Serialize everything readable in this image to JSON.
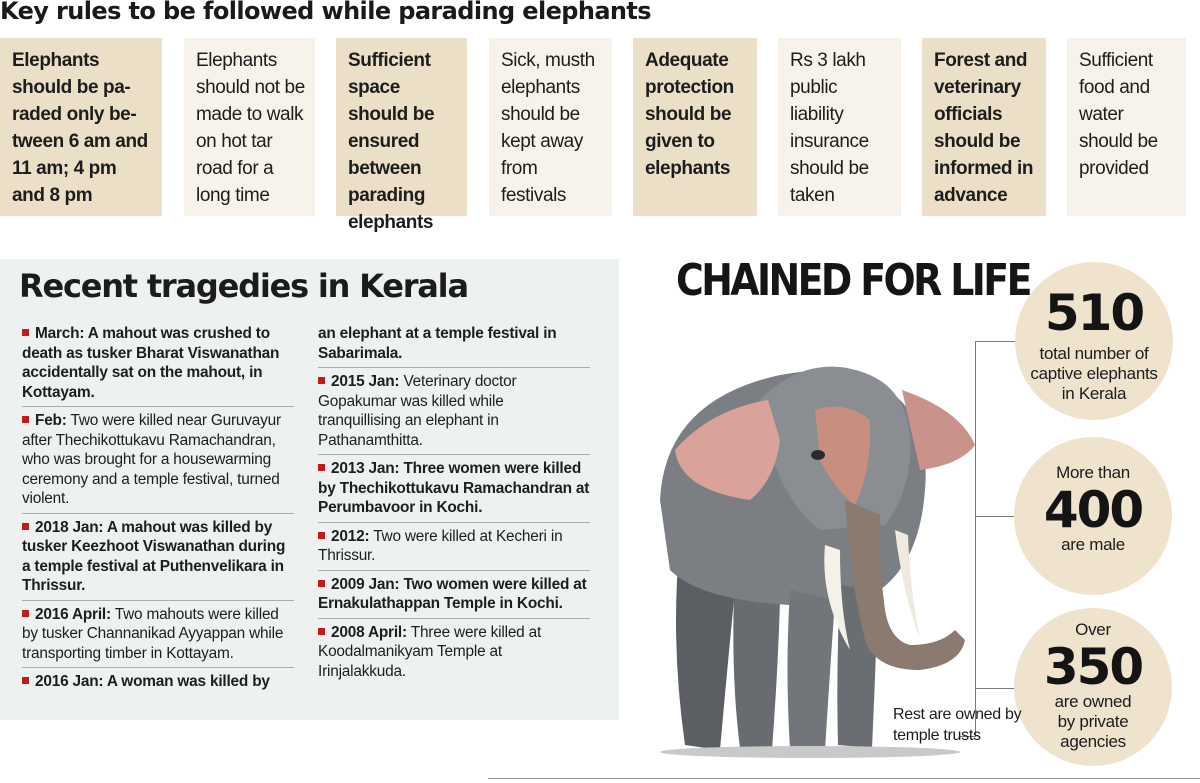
{
  "headline": "Key rules to be followed while parading elephants",
  "rules": [
    {
      "text": "Elephants should be pa-raded only be-tween 6 am and 11 am; 4 pm and 8 pm",
      "style": "dark"
    },
    {
      "text": "Elephants should not be made to walk on hot tar road for a long time",
      "style": "light"
    },
    {
      "text": "Sufficient space should be ensured between parading elephants",
      "style": "dark"
    },
    {
      "text": "Sick, musth elephants should be kept away from festivals",
      "style": "light"
    },
    {
      "text": "Adequate protection should be given to elephants",
      "style": "dark"
    },
    {
      "text": "Rs 3 lakh public liability insurance should be taken",
      "style": "light"
    },
    {
      "text": "Forest and veterinary officials should be informed in advance",
      "style": "dark"
    },
    {
      "text": "Sufficient food and water should be provided",
      "style": "light"
    }
  ],
  "tragedies": {
    "title": "Recent tragedies in Kerala",
    "entries": [
      {
        "lead": "March:",
        "rest": "A mahout was crushed to death as tusker Bharat Viswanathan accidentally sat on the mahout, in Kottayam.",
        "bold_all": true
      },
      {
        "lead": "Feb:",
        "rest": "Two were killed near Guruvayur after Thechikottukavu Ramachandran, who was brought for a housewarming ceremony and a temple festival, turned violent.",
        "bold_all": false
      },
      {
        "lead": "2018 Jan:",
        "rest": "A mahout was killed by tusker Keezhoot Viswanathan during a temple festival at Puthenvelikara in Thrissur.",
        "bold_all": true
      },
      {
        "lead": "2016 April:",
        "rest": "Two mahouts were killed by tusker Channanikad Ayyappan while transporting timber in Kottayam.",
        "bold_all": false
      },
      {
        "lead": "2016 Jan:",
        "rest": "A woman was killed by",
        "bold_all": true
      },
      {
        "lead": "",
        "rest": "an elephant at a temple festival in Sabarimala.",
        "bold_all": true
      },
      {
        "lead": "2015 Jan:",
        "rest": "Veterinary doctor Gopakumar was killed while tranquillising an elephant in Pathanamthitta.",
        "bold_all": false
      },
      {
        "lead": "2013 Jan:",
        "rest": "Three women were killed by Thechikottukavu Ramachandran at Perumbavoor in Kochi.",
        "bold_all": true
      },
      {
        "lead": "2012:",
        "rest": "Two were killed at Kecheri in Thrissur.",
        "bold_all": false
      },
      {
        "lead": "2009 Jan:",
        "rest": "Two women were killed at Ernakulathappan Temple in Kochi.",
        "bold_all": true
      },
      {
        "lead": "2008 April:",
        "rest": "Three were killed at Koodalmanikyam Temple at Irinjalakkuda.",
        "bold_all": false
      }
    ]
  },
  "chained": {
    "title": "CHAINED FOR LIFE",
    "stats": [
      {
        "pre": "",
        "number": "510",
        "post": "total number of captive elephants in Kerala"
      },
      {
        "pre": "More than",
        "number": "400",
        "post": "are male"
      },
      {
        "pre": "Over",
        "number": "350",
        "post": "are owned by private agencies"
      }
    ],
    "rest_note": "Rest are owned by temple trusts"
  },
  "colors": {
    "rule_dark": "#ecdfc7",
    "rule_light": "#f7f2ea",
    "tragedies_bg": "#edf1ef",
    "bullet_red": "#c11c1c",
    "stat_circle": "#efe3cd"
  }
}
